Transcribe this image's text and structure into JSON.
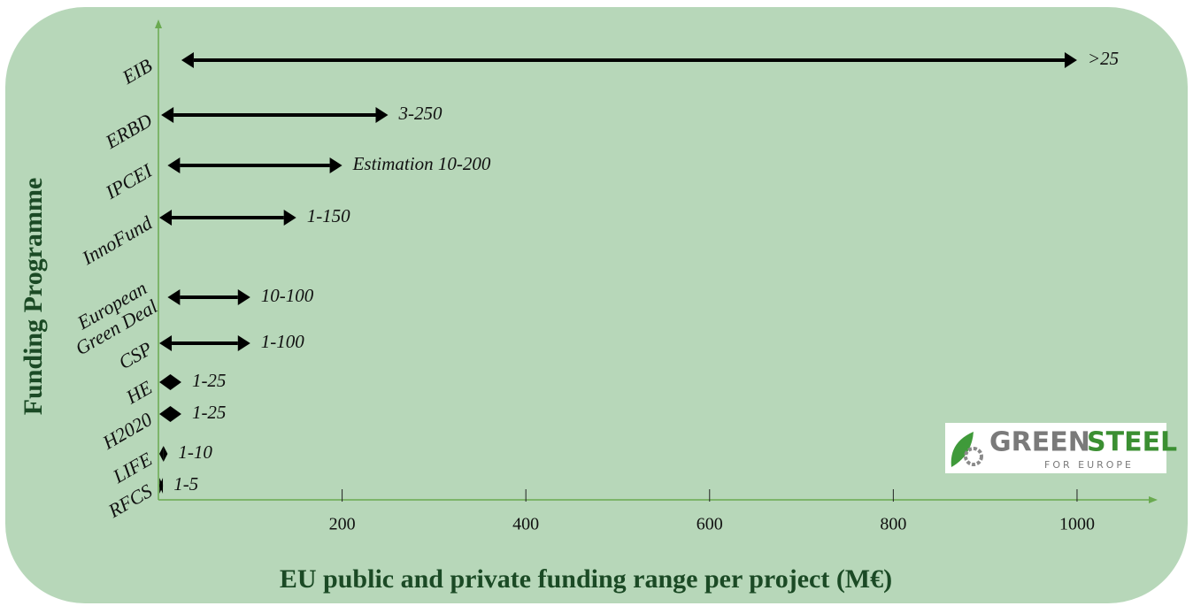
{
  "chart_data": {
    "type": "range",
    "x_label": "EU public and private funding range per project (M€)",
    "y_label": "Funding Programme",
    "categories": [
      "EIB",
      "ERBD",
      "IPCEI",
      "InnoFund",
      [
        "European",
        "Green Deal"
      ],
      "CSP",
      "HE",
      "H2020",
      "LIFE",
      "RFCS"
    ],
    "low": [
      25,
      3,
      10,
      1,
      10,
      1,
      1,
      1,
      1,
      1
    ],
    "high": [
      1000,
      250,
      200,
      150,
      100,
      100,
      25,
      25,
      10,
      5
    ],
    "value_labels": [
      ">25",
      "3-250",
      "Estimation 10-200",
      "1-150",
      "10-100",
      "1-100",
      "1-25",
      "1-25",
      "1-10",
      "1-5"
    ],
    "color": "#000000",
    "axis_color": "#6aaa50",
    "xlim": [
      0,
      1080
    ],
    "xticks": [
      200,
      400,
      600,
      800,
      1000
    ],
    "logo": {
      "brand1": "GREEN",
      "brand2": "STEEL",
      "tagline": "FOR EUROPE"
    }
  }
}
